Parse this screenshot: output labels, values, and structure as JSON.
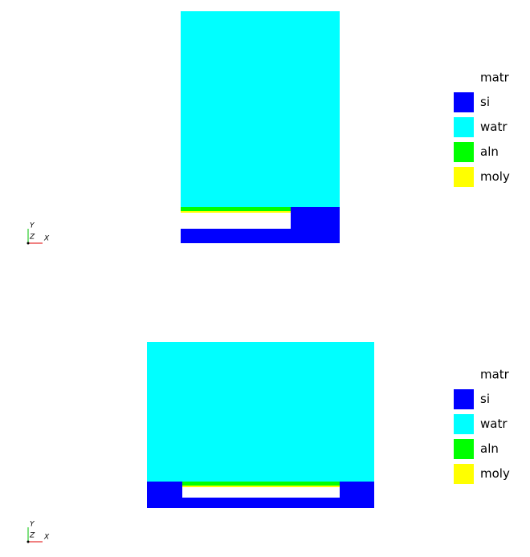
{
  "panels": [
    {
      "legend": {
        "title": "matr",
        "items": [
          {
            "label": "si",
            "color": "#0000ff"
          },
          {
            "label": "watr",
            "color": "#00ffff"
          },
          {
            "label": "aln",
            "color": "#00ff00"
          },
          {
            "label": "moly",
            "color": "#ffff00"
          }
        ]
      },
      "axes": {
        "y": "Y",
        "z": "Z",
        "x": "X"
      }
    },
    {
      "legend": {
        "title": "matr",
        "items": [
          {
            "label": "si",
            "color": "#0000ff"
          },
          {
            "label": "watr",
            "color": "#00ffff"
          },
          {
            "label": "aln",
            "color": "#00ff00"
          },
          {
            "label": "moly",
            "color": "#ffff00"
          }
        ]
      },
      "axes": {
        "y": "Y",
        "z": "Z",
        "x": "X"
      }
    }
  ]
}
